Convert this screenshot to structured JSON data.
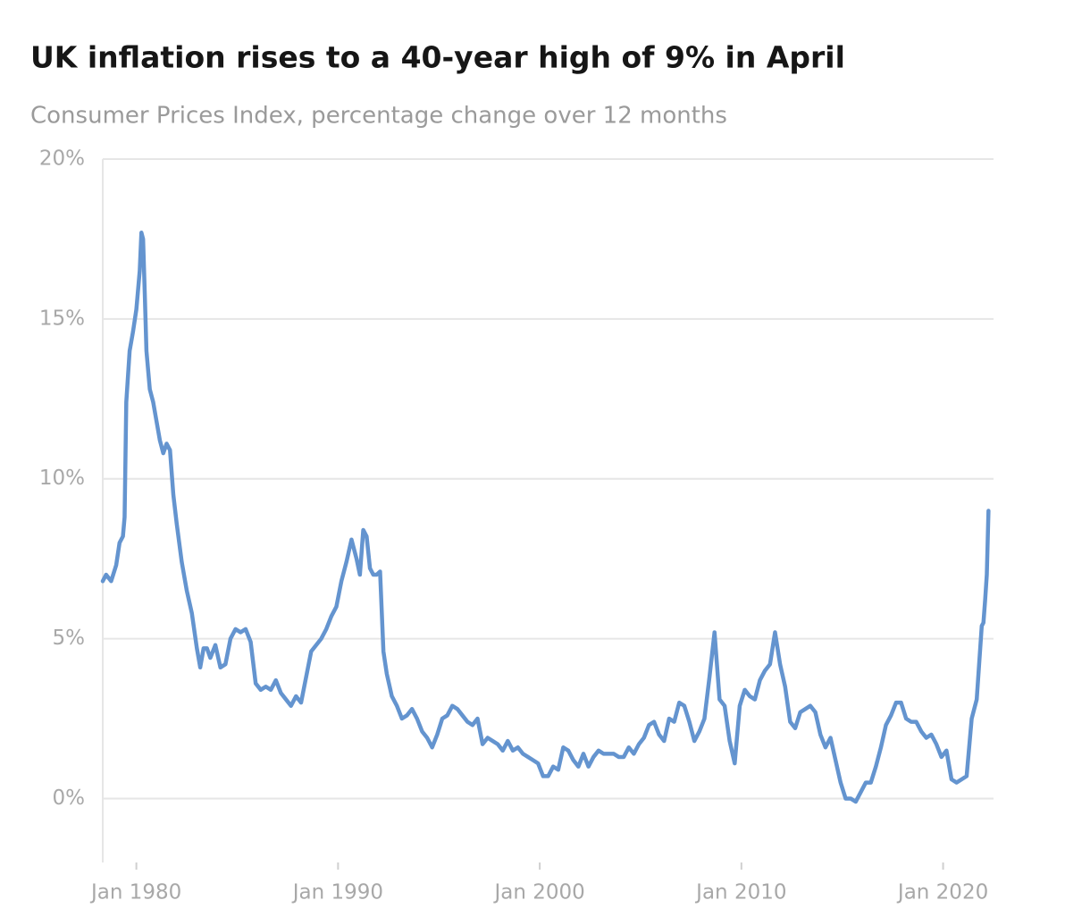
{
  "chart_data": {
    "type": "line",
    "title": "UK inflation rises to a 40-year high of 9% in April",
    "subtitle": "Consumer Prices Index, percentage change over 12 months",
    "x": [
      "1978-05",
      "1978-07",
      "1978-10",
      "1979-01",
      "1979-03",
      "1979-05",
      "1979-06",
      "1979-07",
      "1979-09",
      "1979-11",
      "1980-01",
      "1980-03",
      "1980-04",
      "1980-05",
      "1980-06",
      "1980-07",
      "1980-09",
      "1980-11",
      "1981-01",
      "1981-03",
      "1981-05",
      "1981-07",
      "1981-09",
      "1981-11",
      "1982-01",
      "1982-04",
      "1982-07",
      "1982-10",
      "1983-01",
      "1983-03",
      "1983-05",
      "1983-07",
      "1983-09",
      "1983-12",
      "1984-03",
      "1984-06",
      "1984-09",
      "1984-12",
      "1985-03",
      "1985-06",
      "1985-09",
      "1985-12",
      "1986-03",
      "1986-06",
      "1986-09",
      "1986-12",
      "1987-03",
      "1987-06",
      "1987-09",
      "1987-12",
      "1988-03",
      "1988-06",
      "1988-09",
      "1988-12",
      "1989-03",
      "1989-06",
      "1989-09",
      "1989-12",
      "1990-03",
      "1990-06",
      "1990-09",
      "1990-12",
      "1991-02",
      "1991-04",
      "1991-06",
      "1991-08",
      "1991-10",
      "1991-12",
      "1992-02",
      "1992-04",
      "1992-06",
      "1992-09",
      "1992-12",
      "1993-03",
      "1993-06",
      "1993-09",
      "1993-12",
      "1994-03",
      "1994-06",
      "1994-09",
      "1994-12",
      "1995-03",
      "1995-06",
      "1995-09",
      "1995-12",
      "1996-03",
      "1996-06",
      "1996-09",
      "1996-12",
      "1997-03",
      "1997-06",
      "1997-09",
      "1997-12",
      "1998-03",
      "1998-06",
      "1998-09",
      "1998-12",
      "1999-03",
      "1999-06",
      "1999-09",
      "1999-12",
      "2000-03",
      "2000-06",
      "2000-09",
      "2000-12",
      "2001-03",
      "2001-06",
      "2001-09",
      "2001-12",
      "2002-03",
      "2002-06",
      "2002-09",
      "2002-12",
      "2003-03",
      "2003-06",
      "2003-09",
      "2003-12",
      "2004-03",
      "2004-06",
      "2004-09",
      "2004-12",
      "2005-03",
      "2005-06",
      "2005-09",
      "2005-12",
      "2006-03",
      "2006-06",
      "2006-09",
      "2006-12",
      "2007-03",
      "2007-06",
      "2007-09",
      "2007-12",
      "2008-03",
      "2008-06",
      "2008-09",
      "2008-12",
      "2009-03",
      "2009-06",
      "2009-09",
      "2009-12",
      "2010-03",
      "2010-06",
      "2010-09",
      "2010-12",
      "2011-03",
      "2011-06",
      "2011-09",
      "2011-12",
      "2012-03",
      "2012-06",
      "2012-09",
      "2012-12",
      "2013-03",
      "2013-06",
      "2013-09",
      "2013-12",
      "2014-03",
      "2014-06",
      "2014-09",
      "2014-12",
      "2015-03",
      "2015-06",
      "2015-09",
      "2015-12",
      "2016-03",
      "2016-06",
      "2016-09",
      "2016-12",
      "2017-03",
      "2017-06",
      "2017-09",
      "2017-12",
      "2018-03",
      "2018-06",
      "2018-09",
      "2018-12",
      "2019-03",
      "2019-06",
      "2019-09",
      "2019-12",
      "2020-03",
      "2020-06",
      "2020-09",
      "2020-12",
      "2021-03",
      "2021-06",
      "2021-09",
      "2021-12",
      "2022-01",
      "2022-02",
      "2022-03",
      "2022-04"
    ],
    "series": [
      {
        "name": "CPI",
        "color": "#6494cf",
        "values": [
          6.8,
          7.0,
          6.8,
          7.3,
          8.0,
          8.2,
          8.8,
          12.4,
          14.0,
          14.6,
          15.3,
          16.5,
          17.7,
          17.5,
          15.8,
          14.0,
          12.8,
          12.4,
          11.8,
          11.2,
          10.8,
          11.1,
          10.9,
          9.5,
          8.6,
          7.4,
          6.5,
          5.8,
          4.7,
          4.1,
          4.7,
          4.7,
          4.4,
          4.8,
          4.1,
          4.2,
          5.0,
          5.3,
          5.2,
          5.3,
          4.9,
          3.6,
          3.4,
          3.5,
          3.4,
          3.7,
          3.3,
          3.1,
          2.9,
          3.2,
          3.0,
          3.8,
          4.6,
          4.8,
          5.0,
          5.3,
          5.7,
          6.0,
          6.8,
          7.4,
          8.1,
          7.5,
          7.0,
          8.4,
          8.2,
          7.2,
          7.0,
          7.0,
          7.1,
          4.6,
          3.9,
          3.2,
          2.9,
          2.5,
          2.6,
          2.8,
          2.5,
          2.1,
          1.9,
          1.6,
          2.0,
          2.5,
          2.6,
          2.9,
          2.8,
          2.6,
          2.4,
          2.3,
          2.5,
          1.7,
          1.9,
          1.8,
          1.7,
          1.5,
          1.8,
          1.5,
          1.6,
          1.4,
          1.3,
          1.2,
          1.1,
          0.7,
          0.7,
          1.0,
          0.9,
          1.6,
          1.5,
          1.2,
          1.0,
          1.4,
          1.0,
          1.3,
          1.5,
          1.4,
          1.4,
          1.4,
          1.3,
          1.3,
          1.6,
          1.4,
          1.7,
          1.9,
          2.3,
          2.4,
          2.0,
          1.8,
          2.5,
          2.4,
          3.0,
          2.9,
          2.4,
          1.8,
          2.1,
          2.5,
          3.8,
          5.2,
          3.1,
          2.9,
          1.8,
          1.1,
          2.9,
          3.4,
          3.2,
          3.1,
          3.7,
          4.0,
          4.2,
          5.2,
          4.2,
          3.5,
          2.4,
          2.2,
          2.7,
          2.8,
          2.9,
          2.7,
          2.0,
          1.6,
          1.9,
          1.2,
          0.5,
          0.0,
          0.0,
          -0.1,
          0.2,
          0.5,
          0.5,
          1.0,
          1.6,
          2.3,
          2.6,
          3.0,
          3.0,
          2.5,
          2.4,
          2.4,
          2.1,
          1.9,
          2.0,
          1.7,
          1.3,
          1.5,
          0.6,
          0.5,
          0.6,
          0.7,
          2.5,
          3.1,
          5.4,
          5.5,
          6.2,
          7.0,
          9.0
        ]
      }
    ],
    "xlim": [
      "1978-05",
      "2022-07"
    ],
    "xticks": [
      {
        "value": "1980-01",
        "label": "Jan 1980"
      },
      {
        "value": "1990-01",
        "label": "Jan 1990"
      },
      {
        "value": "2000-01",
        "label": "Jan 2000"
      },
      {
        "value": "2010-01",
        "label": "Jan 2010"
      },
      {
        "value": "2020-01",
        "label": "Jan 2020"
      }
    ],
    "ylim": [
      -2,
      20
    ],
    "yticks": [
      {
        "value": 0,
        "label": "0%"
      },
      {
        "value": 5,
        "label": "5%"
      },
      {
        "value": 10,
        "label": "10%"
      },
      {
        "value": 15,
        "label": "15%"
      },
      {
        "value": 20,
        "label": "20%"
      }
    ],
    "grid": true
  }
}
